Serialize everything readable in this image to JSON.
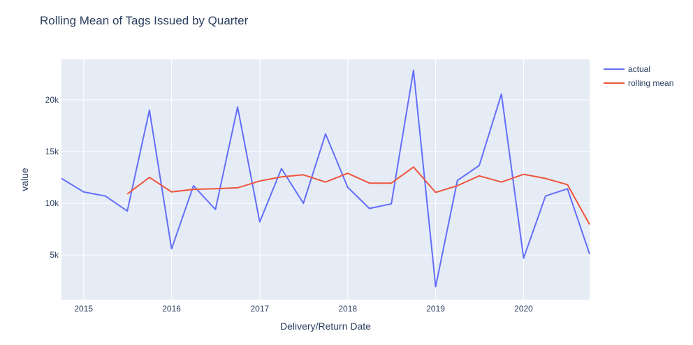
{
  "chart_data": {
    "type": "line",
    "title": "Rolling Mean of Tags Issued by Quarter",
    "xlabel": "Delivery/Return Date",
    "ylabel": "value",
    "x_tick_labels": [
      "2015",
      "2016",
      "2017",
      "2018",
      "2019",
      "2020"
    ],
    "y_tick_labels": [
      "5k",
      "10k",
      "15k",
      "20k"
    ],
    "y_ticks": [
      5000,
      10000,
      15000,
      20000
    ],
    "ylim": [
      700,
      23900
    ],
    "xlim": [
      "2014-10-01",
      "2020-10-01"
    ],
    "grid": true,
    "legend_position": "top-right",
    "x": [
      "2014-10-01",
      "2015-01-01",
      "2015-04-01",
      "2015-07-01",
      "2015-10-01",
      "2016-01-01",
      "2016-04-01",
      "2016-07-01",
      "2016-10-01",
      "2017-01-01",
      "2017-04-01",
      "2017-07-01",
      "2017-10-01",
      "2018-01-01",
      "2018-04-01",
      "2018-07-01",
      "2018-10-01",
      "2019-01-01",
      "2019-04-01",
      "2019-07-01",
      "2019-10-01",
      "2020-01-01",
      "2020-04-01",
      "2020-07-01",
      "2020-10-01"
    ],
    "series": [
      {
        "name": "actual",
        "color": "#636efa",
        "values": [
          12400,
          11100,
          10700,
          9250,
          19000,
          5600,
          11700,
          9400,
          19300,
          8200,
          13350,
          10000,
          16700,
          11550,
          9500,
          9950,
          22850,
          1950,
          12200,
          13650,
          20550,
          4700,
          10700,
          11400,
          5100
        ]
      },
      {
        "name": "rolling mean",
        "color": "#EF553B",
        "values": [
          null,
          null,
          null,
          10900,
          12500,
          11100,
          11350,
          11400,
          11500,
          12150,
          12550,
          12750,
          12050,
          12900,
          11950,
          11950,
          13500,
          11050,
          11700,
          12650,
          12050,
          12800,
          12400,
          11800,
          7950
        ]
      }
    ]
  }
}
